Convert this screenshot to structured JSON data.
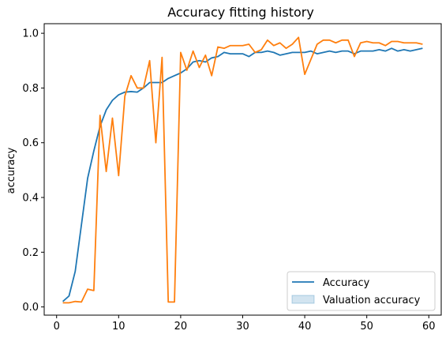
{
  "chart_data": {
    "type": "line",
    "title": "Accuracy fitting history",
    "xlabel": "",
    "ylabel": "accuracy",
    "xlim": [
      -2,
      62
    ],
    "ylim": [
      -0.03,
      1.035
    ],
    "xticks": [
      0,
      10,
      20,
      30,
      40,
      50,
      60
    ],
    "yticks": [
      0.0,
      0.2,
      0.4,
      0.6,
      0.8,
      1.0
    ],
    "xtick_labels": [
      "0",
      "10",
      "20",
      "30",
      "40",
      "50",
      "60"
    ],
    "ytick_labels": [
      "0.0",
      "0.2",
      "0.4",
      "0.6",
      "0.8",
      "1.0"
    ],
    "grid": false,
    "legend_position": "lower right",
    "legend": [
      {
        "label": "Accuracy",
        "style": "line",
        "color": "#1f77b4"
      },
      {
        "label": "Valuation accuracy",
        "style": "patch",
        "color": "#1f77b4"
      }
    ],
    "x": [
      1,
      2,
      3,
      4,
      5,
      6,
      7,
      8,
      9,
      10,
      11,
      12,
      13,
      14,
      15,
      16,
      17,
      18,
      19,
      20,
      21,
      22,
      23,
      24,
      25,
      26,
      27,
      28,
      29,
      30,
      31,
      32,
      33,
      34,
      35,
      36,
      37,
      38,
      39,
      40,
      41,
      42,
      43,
      44,
      45,
      46,
      47,
      48,
      49,
      50,
      51,
      52,
      53,
      54,
      55,
      56,
      57,
      58,
      59
    ],
    "series": [
      {
        "color": "#1f77b4",
        "values": [
          0.02,
          0.04,
          0.13,
          0.3,
          0.47,
          0.57,
          0.66,
          0.72,
          0.755,
          0.775,
          0.785,
          0.787,
          0.785,
          0.8,
          0.82,
          0.82,
          0.82,
          0.835,
          0.845,
          0.855,
          0.87,
          0.895,
          0.9,
          0.895,
          0.91,
          0.915,
          0.93,
          0.925,
          0.925,
          0.925,
          0.915,
          0.93,
          0.93,
          0.935,
          0.93,
          0.92,
          0.925,
          0.93,
          0.93,
          0.93,
          0.935,
          0.925,
          0.93,
          0.935,
          0.93,
          0.935,
          0.935,
          0.925,
          0.935,
          0.935,
          0.935,
          0.94,
          0.935,
          0.945,
          0.935,
          0.94,
          0.935,
          0.94,
          0.945
        ]
      },
      {
        "color": "#ff7f0e",
        "values": [
          0.015,
          0.015,
          0.02,
          0.018,
          0.065,
          0.06,
          0.7,
          0.495,
          0.69,
          0.48,
          0.77,
          0.845,
          0.8,
          0.8,
          0.9,
          0.6,
          0.912,
          0.018,
          0.018,
          0.93,
          0.865,
          0.935,
          0.875,
          0.92,
          0.845,
          0.95,
          0.945,
          0.955,
          0.955,
          0.955,
          0.96,
          0.93,
          0.94,
          0.975,
          0.955,
          0.965,
          0.945,
          0.96,
          0.985,
          0.85,
          0.905,
          0.96,
          0.975,
          0.975,
          0.965,
          0.975,
          0.975,
          0.915,
          0.965,
          0.97,
          0.965,
          0.965,
          0.955,
          0.97,
          0.97,
          0.965,
          0.965,
          0.965,
          0.96
        ]
      }
    ]
  }
}
